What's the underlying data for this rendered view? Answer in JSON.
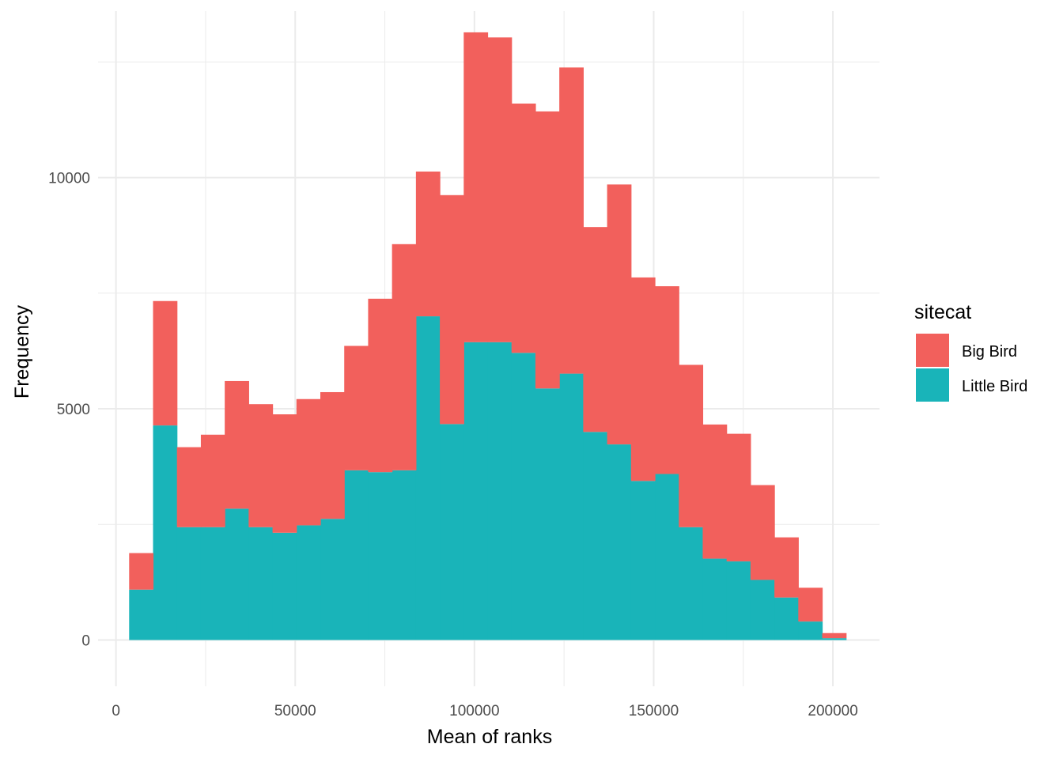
{
  "chart_data": {
    "type": "bar",
    "stacked": true,
    "histogram": true,
    "xlabel": "Mean of ranks",
    "ylabel": "Frequency",
    "xlim": [
      -5000,
      213000
    ],
    "ylim": [
      -1000,
      13600
    ],
    "x_ticks": [
      0,
      50000,
      100000,
      150000,
      200000
    ],
    "x_tick_labels": [
      "0",
      "50000",
      "100000",
      "150000",
      "200000"
    ],
    "y_ticks": [
      0,
      5000,
      10000
    ],
    "y_tick_labels": [
      "0",
      "5000",
      "10000"
    ],
    "grid": true,
    "legend_position": "right",
    "legend_title": "sitecat",
    "bin_width": 6667,
    "bin_starts": [
      3667,
      10334,
      17001,
      23668,
      30335,
      37002,
      43669,
      50336,
      57003,
      63670,
      70337,
      77004,
      83671,
      90338,
      97005,
      103672,
      110339,
      117006,
      123673,
      130340,
      137007,
      143674,
      150341,
      157008,
      163675,
      170342,
      177009,
      183676,
      190343,
      197010
    ],
    "series": [
      {
        "name": "Little Bird",
        "color": "#19B4B9",
        "values": [
          1090,
          4640,
          2440,
          2440,
          2840,
          2440,
          2320,
          2480,
          2620,
          3670,
          3630,
          3670,
          7000,
          4670,
          6440,
          6440,
          6210,
          5440,
          5760,
          4500,
          4230,
          3440,
          3590,
          2440,
          1760,
          1700,
          1300,
          920,
          400,
          40
        ]
      },
      {
        "name": "Big Bird",
        "color": "#F2605C",
        "values": [
          790,
          2690,
          1730,
          2000,
          2760,
          2660,
          2560,
          2730,
          2740,
          2690,
          3750,
          4890,
          3130,
          4950,
          6700,
          6590,
          5390,
          5990,
          6620,
          4430,
          5620,
          4400,
          4060,
          3510,
          2900,
          2760,
          2050,
          1300,
          730,
          110
        ]
      }
    ]
  }
}
